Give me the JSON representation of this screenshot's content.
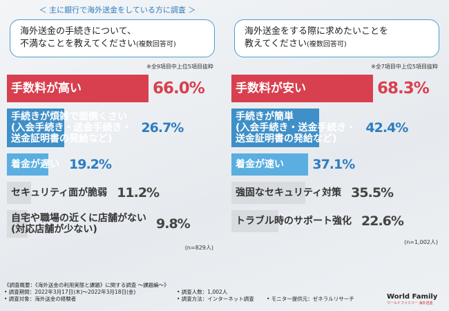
{
  "header": "＜ 主に銀行で海外送金をしている方に調査 ＞",
  "chart_data": [
    {
      "type": "bar",
      "orientation": "horizontal",
      "title": "海外送金の手続きについて、\n不満なことを教えてください",
      "note": "(複数回答可)",
      "scope_note": "※全9項目中上位5項目抜粋",
      "categories": [
        "手数料が高い",
        "手続きが煩雑で面倒くさい\n(入会手続き・送金手続き・\n送金証明書の発給など)",
        "着金が遅い",
        "セキュリティ面が脆弱",
        "自宅や職場の近くに店舗がない\n(対応店舗が少ない)"
      ],
      "values": [
        66.0,
        26.7,
        19.2,
        11.2,
        9.8
      ],
      "value_labels": [
        "66.0%",
        "26.7%",
        "19.2%",
        "11.2%",
        "9.8%"
      ],
      "colors": [
        "#d8404f",
        "#3f8fc8",
        "#5aaee0",
        "#d9dcdf",
        "#d9dcdf"
      ],
      "label_colors": [
        "#ffffff",
        "#ffffff",
        "#ffffff",
        "#333333",
        "#333333"
      ],
      "value_colors": [
        "#d8404f",
        "#2c7cc0",
        "#2c7cc0",
        "#444444",
        "#444444"
      ],
      "sample_note": "(n=829人)"
    },
    {
      "type": "bar",
      "orientation": "horizontal",
      "title": "海外送金をする際に求めたいことを\n教えてください",
      "note": "(複数回答可)",
      "scope_note": "※全7項目中上位5項目抜粋",
      "categories": [
        "手数料が安い",
        "手続きが簡単\n(入会手続き・送金手続き・\n送金証明書の発給など)",
        "着金が速い",
        "強固なセキュリティ対策",
        "トラブル時のサポート強化"
      ],
      "values": [
        68.3,
        42.4,
        37.1,
        35.5,
        22.6
      ],
      "value_labels": [
        "68.3%",
        "42.4%",
        "37.1%",
        "35.5%",
        "22.6%"
      ],
      "colors": [
        "#d8404f",
        "#3f8fc8",
        "#5aaee0",
        "#d9dcdf",
        "#d9dcdf"
      ],
      "label_colors": [
        "#ffffff",
        "#ffffff",
        "#ffffff",
        "#333333",
        "#333333"
      ],
      "value_colors": [
        "#d8404f",
        "#2c7cc0",
        "#2c7cc0",
        "#444444",
        "#444444"
      ],
      "sample_note": "(n=1,002人)"
    }
  ],
  "footer": {
    "lines": [
      "《調査概要：《海外送金の利用実態と課題》に関する調査 ～課題編～》",
      "• 調査期間：2022年3月17日(木)～2022年3月18日(金)",
      "• 調査対象：海外送金の経験者",
      "• 調査人数：1,002人",
      "• 調査方法：インターネット調査",
      "• モニター提供元：ゼネラルリサーチ"
    ]
  },
  "logo": {
    "name": "World Family",
    "sub": "ワールドファミリー 海外送金"
  }
}
